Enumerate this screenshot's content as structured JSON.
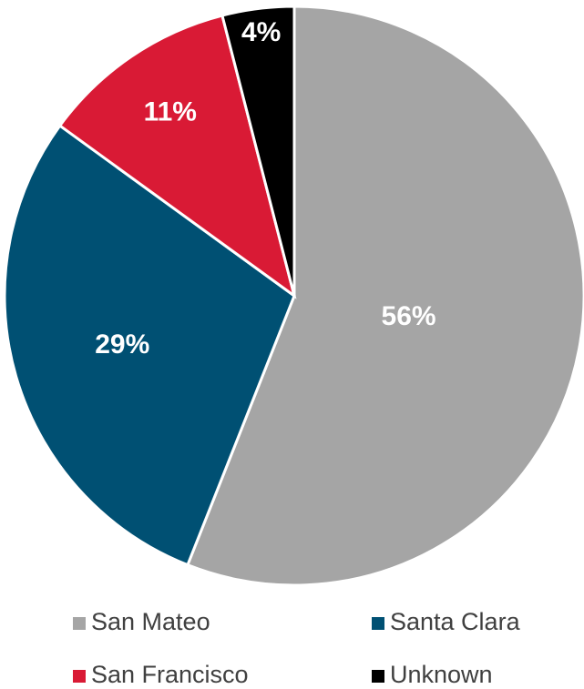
{
  "chart_data": {
    "type": "pie",
    "categories": [
      "San Mateo",
      "Santa Clara",
      "San Francisco",
      "Unknown"
    ],
    "values": [
      56,
      29,
      11,
      4
    ],
    "value_labels": [
      "56%",
      "29%",
      "11%",
      "4%"
    ],
    "colors": [
      "#a5a5a5",
      "#005073",
      "#d91a35",
      "#000000"
    ]
  }
}
